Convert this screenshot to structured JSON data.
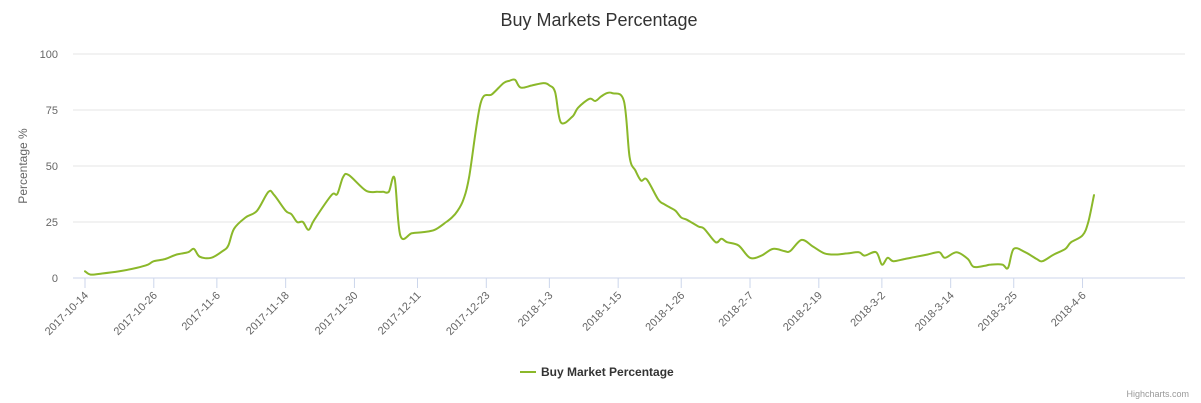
{
  "chart_data": {
    "type": "line",
    "title": "Buy Markets Percentage",
    "ylabel": "Percentage %",
    "xlabel": "",
    "ylim": [
      0,
      100
    ],
    "yticks": [
      0,
      25,
      50,
      75,
      100
    ],
    "grid": true,
    "legend_position": "bottom-center",
    "xticks": [
      "2017-10-14",
      "2017-10-26",
      "2017-11-6",
      "2017-11-18",
      "2017-11-30",
      "2017-12-11",
      "2017-12-23",
      "2018-1-3",
      "2018-1-15",
      "2018-1-26",
      "2018-2-7",
      "2018-2-19",
      "2018-3-2",
      "2018-3-14",
      "2018-3-25",
      "2018-4-6"
    ],
    "series": [
      {
        "name": "Buy Market Percentage",
        "color": "#8bb82a",
        "x": [
          "2017-10-14",
          "2017-10-15",
          "2017-10-17",
          "2017-10-20",
          "2017-10-23",
          "2017-10-25",
          "2017-10-26",
          "2017-10-28",
          "2017-10-30",
          "2017-11-1",
          "2017-11-2",
          "2017-11-3",
          "2017-11-5",
          "2017-11-7",
          "2017-11-8",
          "2017-11-9",
          "2017-11-11",
          "2017-11-13",
          "2017-11-15",
          "2017-11-16",
          "2017-11-18",
          "2017-11-19",
          "2017-11-20",
          "2017-11-21",
          "2017-11-22",
          "2017-11-23",
          "2017-11-26",
          "2017-11-27",
          "2017-11-28",
          "2017-11-29",
          "2017-12-2",
          "2017-12-4",
          "2017-12-5",
          "2017-12-6",
          "2017-12-7",
          "2017-12-8",
          "2017-12-10",
          "2017-12-12",
          "2017-12-14",
          "2017-12-16",
          "2017-12-17",
          "2017-12-18",
          "2017-12-19",
          "2017-12-20",
          "2017-12-22",
          "2017-12-24",
          "2017-12-26",
          "2017-12-27",
          "2017-12-28",
          "2017-12-29",
          "2017-12-31",
          "2018-1-2",
          "2018-1-3",
          "2018-1-4",
          "2018-1-5",
          "2018-1-7",
          "2018-1-8",
          "2018-1-10",
          "2018-1-11",
          "2018-1-12",
          "2018-1-13",
          "2018-1-14",
          "2018-1-16",
          "2018-1-17",
          "2018-1-18",
          "2018-1-19",
          "2018-1-20",
          "2018-1-22",
          "2018-1-23",
          "2018-1-24",
          "2018-1-25",
          "2018-1-26",
          "2018-1-27",
          "2018-1-29",
          "2018-1-30",
          "2018-2-1",
          "2018-2-2",
          "2018-2-3",
          "2018-2-5",
          "2018-2-7",
          "2018-2-9",
          "2018-2-11",
          "2018-2-13",
          "2018-2-14",
          "2018-2-16",
          "2018-2-18",
          "2018-2-20",
          "2018-2-22",
          "2018-2-24",
          "2018-2-26",
          "2018-2-27",
          "2018-3-1",
          "2018-3-2",
          "2018-3-3",
          "2018-3-4",
          "2018-3-6",
          "2018-3-8",
          "2018-3-10",
          "2018-3-12",
          "2018-3-13",
          "2018-3-15",
          "2018-3-17",
          "2018-3-18",
          "2018-3-20",
          "2018-3-21",
          "2018-3-23",
          "2018-3-24",
          "2018-3-25",
          "2018-3-27",
          "2018-3-29",
          "2018-3-30",
          "2018-4-1",
          "2018-4-3",
          "2018-4-4",
          "2018-4-6",
          "2018-4-7",
          "2018-4-8"
        ],
        "y": [
          3,
          1.5,
          2,
          3,
          4.5,
          6,
          7.5,
          8.5,
          10.5,
          11.5,
          13,
          9.5,
          9,
          12,
          14.5,
          22,
          27,
          30,
          38.5,
          37,
          30,
          28.5,
          25,
          25,
          21.5,
          26,
          37,
          37.5,
          45,
          46,
          39,
          38.5,
          38.5,
          38.5,
          44.5,
          19,
          20,
          20.5,
          21.5,
          25,
          27,
          30,
          35,
          45,
          78,
          82,
          87,
          88,
          88.5,
          85,
          86,
          87,
          86,
          83,
          69.5,
          72,
          76,
          80,
          79,
          81,
          82.5,
          82.5,
          79,
          54,
          48,
          43.5,
          44,
          35,
          33,
          31.5,
          30,
          27,
          26,
          23,
          22,
          16,
          17.5,
          16,
          14.5,
          9,
          10,
          13,
          12,
          12,
          17,
          14,
          11,
          10.5,
          11,
          11.5,
          10,
          11.5,
          6,
          9,
          7.5,
          8.5,
          9.5,
          10.5,
          11.5,
          9,
          11.5,
          8.5,
          5,
          5.5,
          6,
          6,
          4.5,
          13,
          11.5,
          8.5,
          7.5,
          10.5,
          13,
          16,
          19,
          25,
          37
        ]
      }
    ]
  },
  "credits": "Highcharts.com"
}
